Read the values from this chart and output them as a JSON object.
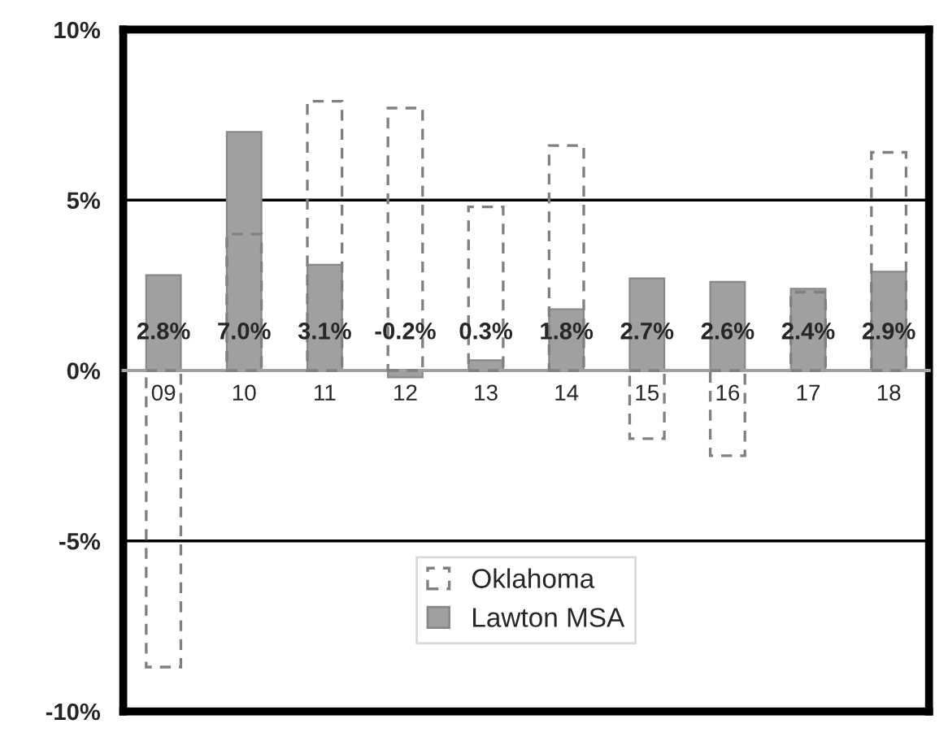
{
  "chart_data": {
    "type": "bar",
    "categories": [
      "09",
      "10",
      "11",
      "12",
      "13",
      "14",
      "15",
      "16",
      "17",
      "18"
    ],
    "series": [
      {
        "name": "Oklahoma",
        "color": "#808080",
        "line_style": "dashed",
        "values": [
          -8.7,
          4.0,
          7.9,
          7.7,
          4.8,
          6.6,
          -2.0,
          -2.5,
          2.3,
          6.4
        ]
      },
      {
        "name": "Lawton MSA",
        "color": "#a0a0a0",
        "values": [
          2.8,
          7.0,
          3.1,
          -0.2,
          0.3,
          1.8,
          2.7,
          2.6,
          2.4,
          2.9
        ],
        "value_labels": [
          "2.8%",
          "7.0%",
          "3.1%",
          "-0.2%",
          "0.3%",
          "1.8%",
          "2.7%",
          "2.6%",
          "2.4%",
          "2.9%"
        ]
      }
    ],
    "ylim": [
      -10,
      10
    ],
    "yticks": [
      {
        "value": -10,
        "label": "-10%"
      },
      {
        "value": -5,
        "label": "-5%"
      },
      {
        "value": 0,
        "label": "0%"
      },
      {
        "value": 5,
        "label": "5%"
      },
      {
        "value": 10,
        "label": "10%"
      }
    ],
    "grid": "y",
    "legend": "bottom"
  }
}
